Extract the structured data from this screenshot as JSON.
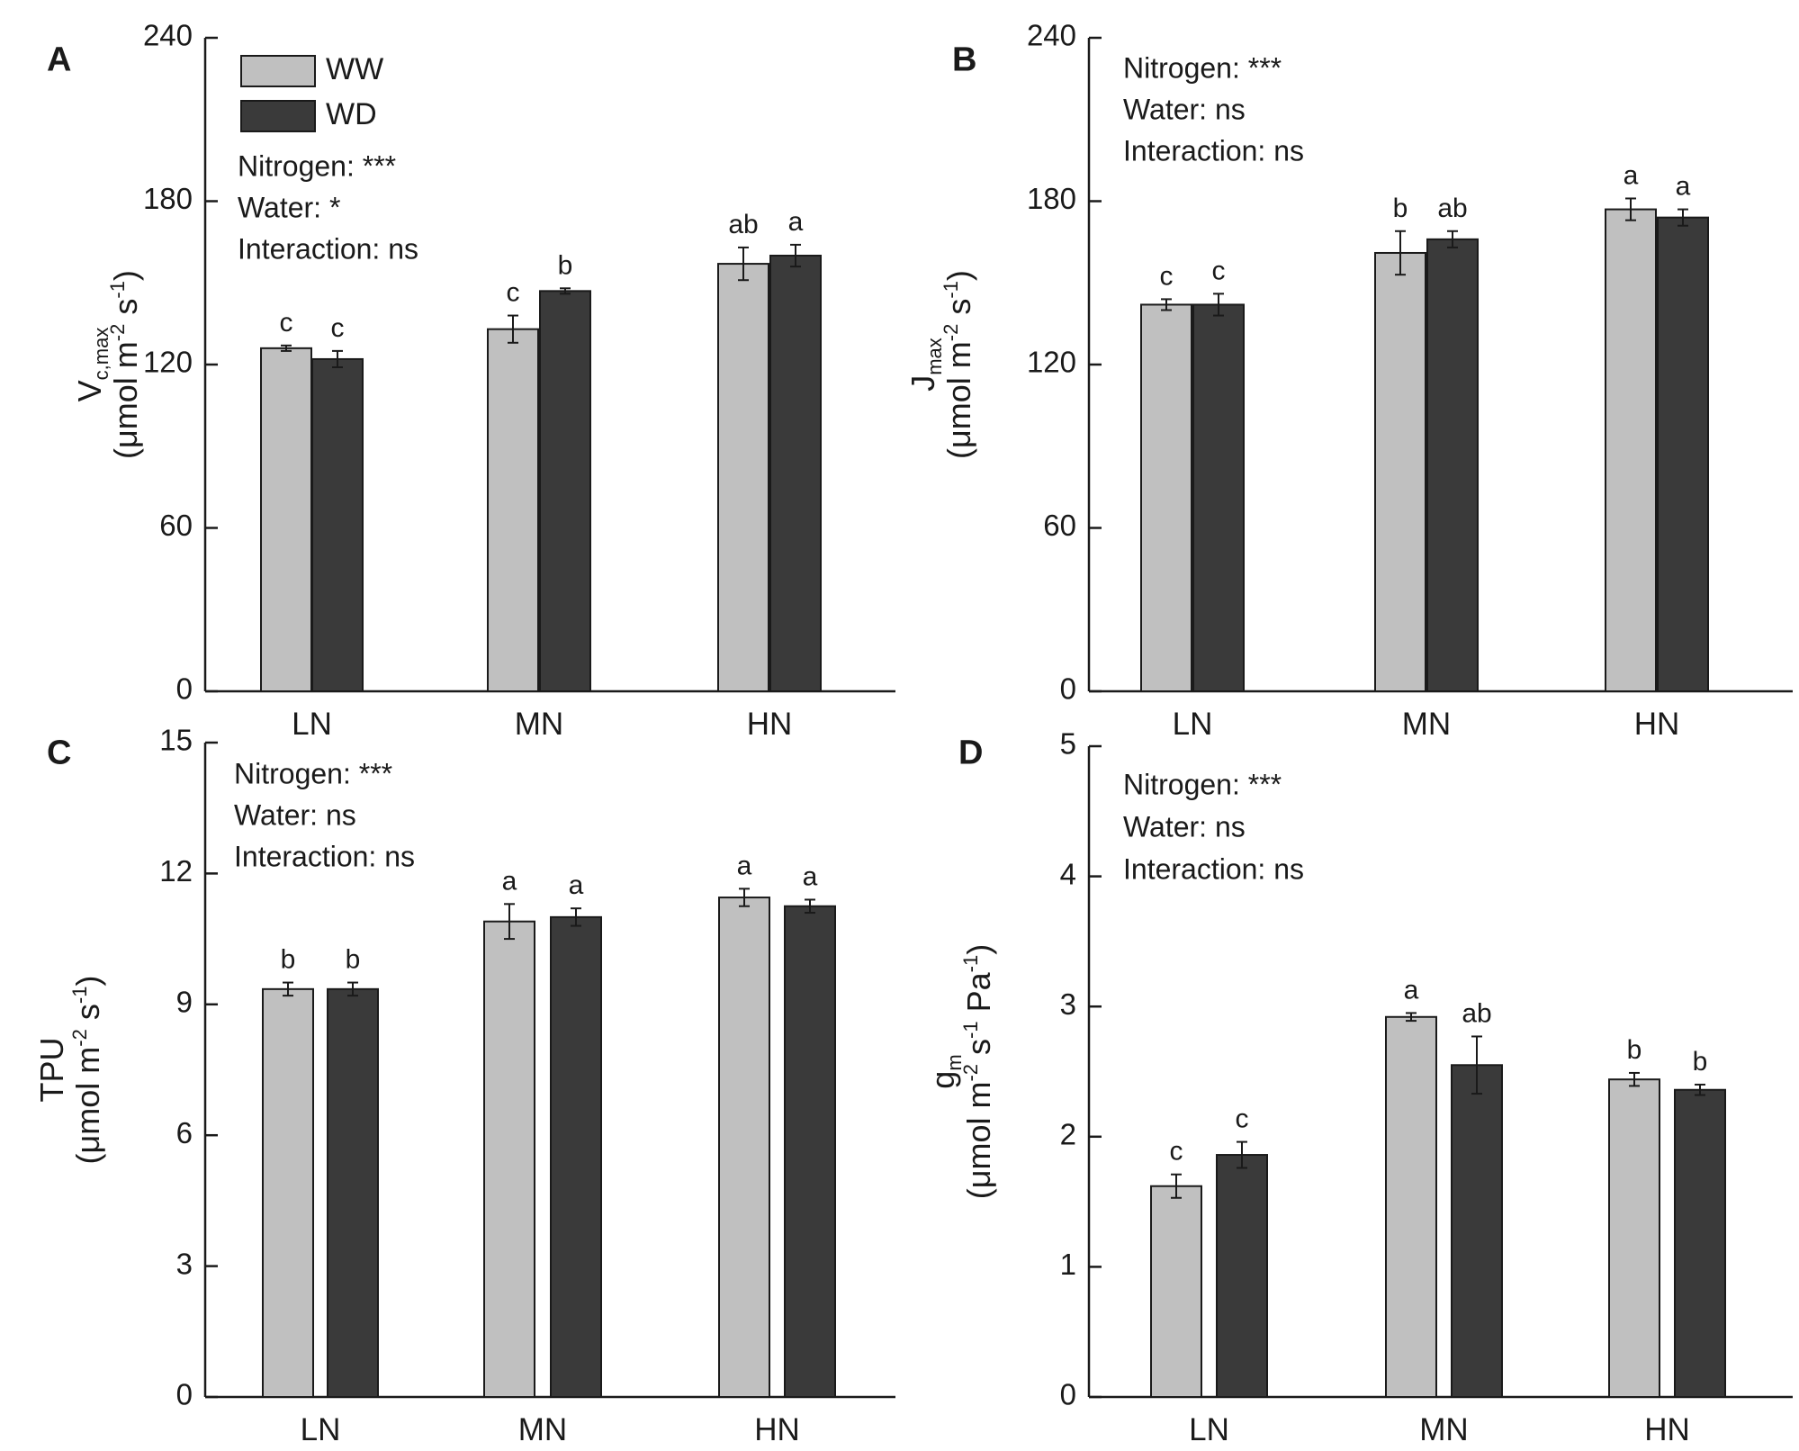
{
  "colors": {
    "WW": "#c0c0c0",
    "WD": "#3a3a3a",
    "axis": "#1a1a1a"
  },
  "legend": [
    {
      "key": "WW",
      "label": "WW"
    },
    {
      "key": "WD",
      "label": "WD"
    }
  ],
  "chart_data": [
    {
      "id": "A",
      "panel_label": "A",
      "type": "bar",
      "categories": [
        "LN",
        "MN",
        "HN"
      ],
      "series": [
        {
          "name": "WW",
          "values": [
            126,
            133,
            157
          ],
          "errors": [
            1,
            5,
            6
          ],
          "letters": [
            "c",
            "c",
            "ab"
          ]
        },
        {
          "name": "WD",
          "values": [
            122,
            147,
            160
          ],
          "errors": [
            3,
            1,
            4
          ],
          "letters": [
            "c",
            "b",
            "a"
          ]
        }
      ],
      "ylim": [
        0,
        240
      ],
      "yticks": [
        0,
        60,
        120,
        180,
        240
      ],
      "ylabel": {
        "main": "V",
        "sub": "c,max",
        "unit_pre": "(μmol m",
        "sup1": "-2",
        "unit_mid": " s",
        "sup2": "-1",
        "unit_post": ")"
      },
      "stats": [
        "Nitrogen: ***",
        "Water: *",
        "Interaction: ns"
      ]
    },
    {
      "id": "B",
      "panel_label": "B",
      "type": "bar",
      "categories": [
        "LN",
        "MN",
        "HN"
      ],
      "series": [
        {
          "name": "WW",
          "values": [
            142,
            161,
            177
          ],
          "errors": [
            2,
            8,
            4
          ],
          "letters": [
            "c",
            "b",
            "a"
          ]
        },
        {
          "name": "WD",
          "values": [
            142,
            166,
            174
          ],
          "errors": [
            4,
            3,
            3
          ],
          "letters": [
            "c",
            "ab",
            "a"
          ]
        }
      ],
      "ylim": [
        0,
        240
      ],
      "yticks": [
        0,
        60,
        120,
        180,
        240
      ],
      "ylabel": {
        "main": "J",
        "sub": "max",
        "unit_pre": "(μmol m",
        "sup1": "-2",
        "unit_mid": " s",
        "sup2": "-1",
        "unit_post": ")"
      },
      "stats": [
        "Nitrogen: ***",
        "Water: ns",
        "Interaction: ns"
      ]
    },
    {
      "id": "C",
      "panel_label": "C",
      "type": "bar",
      "categories": [
        "LN",
        "MN",
        "HN"
      ],
      "series": [
        {
          "name": "WW",
          "values": [
            9.35,
            10.9,
            11.45
          ],
          "errors": [
            0.15,
            0.4,
            0.2
          ],
          "letters": [
            "b",
            "a",
            "a"
          ]
        },
        {
          "name": "WD",
          "values": [
            9.35,
            11.0,
            11.25
          ],
          "errors": [
            0.15,
            0.2,
            0.15
          ],
          "letters": [
            "b",
            "a",
            "a"
          ]
        }
      ],
      "ylim": [
        0,
        15
      ],
      "yticks": [
        0,
        3,
        6,
        9,
        12,
        15
      ],
      "ylabel": {
        "main": "TPU",
        "sub": "",
        "unit_pre": "(μmol m",
        "sup1": "-2",
        "unit_mid": " s",
        "sup2": "-1",
        "unit_post": ")"
      },
      "stats": [
        "Nitrogen: ***",
        "Water: ns",
        "Interaction: ns"
      ]
    },
    {
      "id": "D",
      "panel_label": "D",
      "type": "bar",
      "categories": [
        "LN",
        "MN",
        "HN"
      ],
      "series": [
        {
          "name": "WW",
          "values": [
            1.62,
            2.92,
            2.44
          ],
          "errors": [
            0.09,
            0.03,
            0.05
          ],
          "letters": [
            "c",
            "a",
            "b"
          ]
        },
        {
          "name": "WD",
          "values": [
            1.86,
            2.55,
            2.36
          ],
          "errors": [
            0.1,
            0.22,
            0.04
          ],
          "letters": [
            "c",
            "ab",
            "b"
          ]
        }
      ],
      "ylim": [
        0,
        5
      ],
      "yticks": [
        0,
        1,
        2,
        3,
        4,
        5
      ],
      "ylabel": {
        "main": "g",
        "sub": "m",
        "unit_pre": "(μmol m",
        "sup1": "-2",
        "unit_mid": " s",
        "sup2": "-1",
        "unit_extra": " Pa",
        "sup3": "-1",
        "unit_post": ")"
      },
      "stats": [
        "Nitrogen: ***",
        "Water: ns",
        "Interaction: ns"
      ]
    }
  ]
}
